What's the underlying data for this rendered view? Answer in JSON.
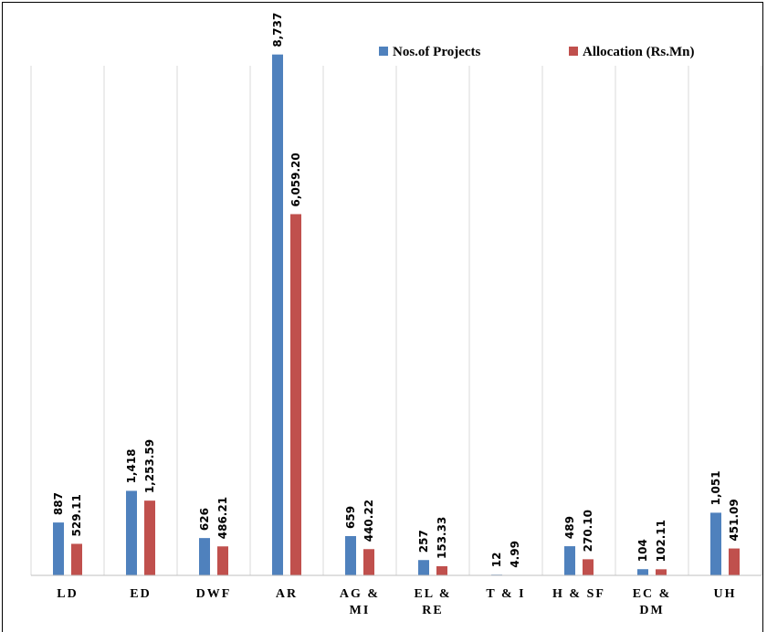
{
  "chart_data": {
    "type": "bar",
    "categories": [
      "LD",
      "ED",
      "DWF",
      "AR",
      "AG & MI",
      "EL & RE",
      "T & I",
      "H & SF",
      "EC & DM",
      "UH"
    ],
    "category_lines": [
      [
        "LD"
      ],
      [
        "ED"
      ],
      [
        "DWF"
      ],
      [
        "AR"
      ],
      [
        "AG &",
        "MI"
      ],
      [
        "EL &",
        "RE"
      ],
      [
        "T & I"
      ],
      [
        "H & SF"
      ],
      [
        "EC &",
        "DM"
      ],
      [
        "UH"
      ]
    ],
    "series": [
      {
        "name": "Nos.of Projects",
        "color": "#4F81BD",
        "values": [
          887,
          1418,
          626,
          8737,
          659,
          257,
          12,
          489,
          104,
          1051
        ],
        "labels": [
          "887",
          "1,418",
          "626",
          "8,737",
          "659",
          "257",
          "12",
          "489",
          "104",
          "1,051"
        ]
      },
      {
        "name": "Allocation (Rs.Mn)",
        "color": "#C0504D",
        "values": [
          529.11,
          1253.59,
          486.21,
          6059.2,
          440.22,
          153.33,
          4.99,
          270.1,
          102.11,
          451.09
        ],
        "labels": [
          "529.11",
          "1,253.59",
          "486.21",
          "6,059.20",
          "440.22",
          "153.33",
          "4.99",
          "270.10",
          "102.11",
          "451.09"
        ]
      }
    ],
    "ylim": [
      0,
      9000
    ],
    "grid": "vertical separators between categories",
    "legend": "top-right",
    "data_labels": "rotated vertical above bars"
  }
}
